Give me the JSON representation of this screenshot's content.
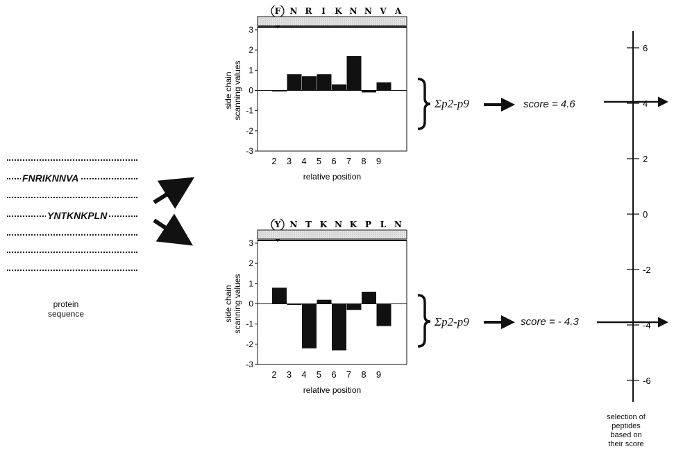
{
  "protein_panel": {
    "seq1": "FNRIKNNVA",
    "seq2": "YNTKNKPLN",
    "caption_line1": "protein",
    "caption_line2": "sequence"
  },
  "chart_data": [
    {
      "type": "bar",
      "ylabel_line1": "side chain",
      "ylabel_line2": "scanning values",
      "xlabel": "relative position",
      "anchor_residue": "F",
      "sequence_letters": [
        "N",
        "R",
        "I",
        "K",
        "N",
        "N",
        "V",
        "A"
      ],
      "categories": [
        "2",
        "3",
        "4",
        "5",
        "6",
        "7",
        "8",
        "9"
      ],
      "values": [
        0,
        0.8,
        0.7,
        0.8,
        0.3,
        1.7,
        -0.1,
        0.4
      ],
      "ylim": [
        -3,
        3
      ],
      "yticks": [
        "3",
        "2",
        "1",
        "0",
        "-1",
        "-2",
        "-3"
      ]
    },
    {
      "type": "bar",
      "ylabel_line1": "side chain",
      "ylabel_line2": "scanning values",
      "xlabel": "relative position",
      "anchor_residue": "Y",
      "sequence_letters": [
        "N",
        "T",
        "K",
        "N",
        "K",
        "P",
        "L",
        "N"
      ],
      "categories": [
        "2",
        "3",
        "4",
        "5",
        "6",
        "7",
        "8",
        "9"
      ],
      "values": [
        0.8,
        0,
        -2.2,
        0.2,
        -2.3,
        -0.3,
        0.6,
        -1.1
      ],
      "ylim": [
        -3,
        3
      ],
      "yticks": [
        "3",
        "2",
        "1",
        "0",
        "-1",
        "-2",
        "-3"
      ]
    }
  ],
  "sum_label": "Σp2-p9",
  "score1": "score = 4.6",
  "score2": "score = - 4.3",
  "score_axis": {
    "ticks": [
      "6",
      "4",
      "2",
      "0",
      "-2",
      "-4",
      "-6"
    ],
    "caption": [
      "selection of",
      "peptides",
      "based on",
      "their score"
    ]
  }
}
